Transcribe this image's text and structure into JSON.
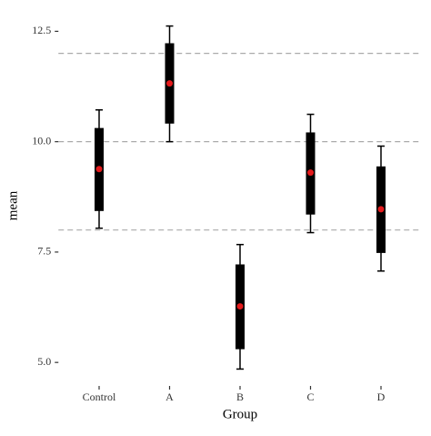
{
  "chart_data": {
    "type": "errorbar",
    "xlabel": "Group",
    "ylabel": "mean",
    "categories": [
      "Control",
      "A",
      "B",
      "C",
      "D"
    ],
    "values": [
      9.38,
      11.32,
      6.27,
      9.3,
      8.47
    ],
    "inner_low": [
      8.43,
      10.41,
      5.3,
      8.35,
      7.48
    ],
    "inner_high": [
      10.31,
      12.23,
      7.22,
      10.21,
      9.44
    ],
    "low": [
      8.04,
      10.0,
      4.85,
      7.94,
      7.07
    ],
    "high": [
      10.72,
      12.62,
      7.67,
      10.62,
      9.9
    ],
    "point_color": "#e41a1c",
    "bar_color": "#000000",
    "reference_lines": [
      8,
      10,
      12
    ],
    "ylim": [
      4.55,
      12.9
    ],
    "yticks": [
      {
        "value": 5,
        "label": "5.0"
      },
      7.5,
      {
        "value": 10,
        "label": "10.0"
      },
      12.5
    ]
  }
}
